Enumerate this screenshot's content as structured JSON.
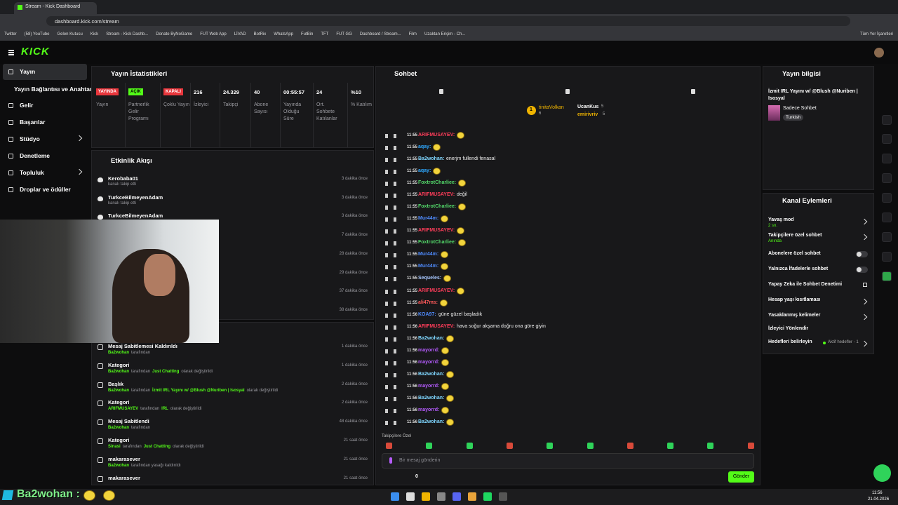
{
  "browser": {
    "tab": "Stream - Kick Dashboard",
    "url": "dashboard.kick.com/stream",
    "bookmarks": [
      "Twitter",
      "(58) YouTube",
      "Gelen Kutusu",
      "Kick",
      "Stream - Kick Dashb...",
      "Donate ByNoGame",
      "FUT Web App",
      "LİVAD",
      "BotRix",
      "WhatsApp",
      "FutBin",
      "TFT",
      "FUT GG",
      "Dashboard / Stream...",
      "Film",
      "Uzaktan Erişim - Ch..."
    ],
    "all_bookmarks": "Tüm Yer İşaretleri"
  },
  "header": {
    "logo": "KICK"
  },
  "nav": [
    "Yayın",
    "Yayın Bağlantısı ve Anahtarı",
    "Gelir",
    "Başarılar",
    "Stüdyo",
    "Denetleme",
    "Topluluk",
    "Droplar ve ödüller"
  ],
  "stats": {
    "title": "Yayın İstatistikleri",
    "items": [
      {
        "value": "YAYINDA",
        "label": "Yayın",
        "badge": "#e8363c"
      },
      {
        "value": "AÇIK",
        "label": "Partnerlik Gelir Programı",
        "badge": "#53fc18"
      },
      {
        "value": "KAPALI",
        "label": "Çoklu Yayın",
        "badge": "#e8363c"
      },
      {
        "value": "216",
        "label": "İzleyici"
      },
      {
        "value": "24.329",
        "label": "Takipçi"
      },
      {
        "value": "40",
        "label": "Abone Sayısı"
      },
      {
        "value": "00:55:57",
        "label": "Yayında Olduğu Süre"
      },
      {
        "value": "24",
        "label": "Ort. Sohbete Katılanlar"
      },
      {
        "value": "%10",
        "label": "% Katılım"
      }
    ]
  },
  "activity": {
    "title": "Etkinlik Akışı",
    "events": [
      {
        "name": "Kerobaba01",
        "action": "kanalı takip etti",
        "time": "3 dakika önce"
      },
      {
        "name": "TurkceBilmeyenAdam",
        "action": "kanalı takip etti",
        "time": "3 dakika önce"
      },
      {
        "name": "TurkceBilmeyenAdam",
        "action": null,
        "time": "3 dakika önce"
      },
      {
        "name": null,
        "action": null,
        "time": "7 dakika önce"
      },
      {
        "name": null,
        "action": null,
        "time": "28 dakika önce"
      },
      {
        "name": null,
        "action": null,
        "time": "29 dakika önce"
      },
      {
        "name": null,
        "action": null,
        "time": "37 dakika önce"
      },
      {
        "name": null,
        "action": null,
        "time": "38 dakika önce"
      }
    ]
  },
  "log": [
    {
      "title": "Mesaj Sabitlemesi Kaldırıldı",
      "parts": [
        "Ba2wohan",
        "tarafından"
      ],
      "time": "1 dakika önce"
    },
    {
      "title": "Kategori",
      "parts": [
        "Ba2wohan",
        "tarafından",
        "Just Chatting",
        "olarak değiştirildi"
      ],
      "time": "1 dakika önce"
    },
    {
      "title": "Başlık",
      "parts": [
        "Ba2wohan",
        "tarafından",
        "İzmit IRL Yayını w/ @Blush @Nuriben | Isosyal",
        "olarak değiştirildi"
      ],
      "time": "2 dakika önce"
    },
    {
      "title": "Kategori",
      "parts": [
        "ARIFMUSAYEV",
        "tarafından",
        "IRL",
        "olarak değiştirildi"
      ],
      "time": "2 dakika önce"
    },
    {
      "title": "Mesaj Sabitlendi",
      "parts": [
        "Ba2wohan",
        "tarafından"
      ],
      "time": "48 dakika önce"
    },
    {
      "title": "Kategori",
      "parts": [
        "Sinasi",
        "tarafından",
        "Just Chatting",
        "olarak değiştirildi"
      ],
      "time": "21 saat önce"
    },
    {
      "title": "makarasever",
      "parts": [
        "Ba2wohan",
        "tarafından yasağı kaldırıldı"
      ],
      "time": "21 saat önce"
    },
    {
      "title": "makarasever",
      "parts": [],
      "time": "21 saat önce"
    }
  ],
  "chat": {
    "title": "Sohbet",
    "leader": {
      "rank": "1",
      "name": "tinitaVolkan",
      "count": "6"
    },
    "top": [
      {
        "name": "UcanKus",
        "count": "5"
      },
      {
        "name": "emirivriv",
        "count": "5"
      }
    ],
    "messages": [
      {
        "time": "11:55",
        "user": "ARIFMUSAYEV:",
        "color": "#ff3d5a",
        "text": null
      },
      {
        "time": "11:55",
        "user": "aqay:",
        "color": "#2ea8ff",
        "text": null
      },
      {
        "time": "11:55",
        "user": "Ba2wohan:",
        "color": "#7fd6ff",
        "text": "enerjm fullendi fenasal"
      },
      {
        "time": "11:55",
        "user": "aqay:",
        "color": "#2ea8ff",
        "text": null
      },
      {
        "time": "11:55",
        "user": "FoxtrotCharliee:",
        "color": "#53d96a",
        "text": null
      },
      {
        "time": "11:55",
        "user": "ARIFMUSAYEV:",
        "color": "#ff3d5a",
        "text": "değil"
      },
      {
        "time": "11:55",
        "user": "FoxtrotCharliee:",
        "color": "#53d96a",
        "text": null
      },
      {
        "time": "11:55",
        "user": "Mur44m:",
        "color": "#4f8cff",
        "text": null
      },
      {
        "time": "11:55",
        "user": "ARIFMUSAYEV:",
        "color": "#ff3d5a",
        "text": null
      },
      {
        "time": "11:55",
        "user": "FoxtrotCharliee:",
        "color": "#53d96a",
        "text": null
      },
      {
        "time": "11:55",
        "user": "Mur44m:",
        "color": "#4f8cff",
        "text": null
      },
      {
        "time": "11:55",
        "user": "Mur44m:",
        "color": "#4f8cff",
        "text": null
      },
      {
        "time": "11:55",
        "user": "Sequeles:",
        "color": "#a8c8ff",
        "text": null
      },
      {
        "time": "11:55",
        "user": "ARIFMUSAYEV:",
        "color": "#ff3d5a",
        "text": null
      },
      {
        "time": "11:55",
        "user": "ali47ms:",
        "color": "#ff5a5a",
        "text": null
      },
      {
        "time": "11:56",
        "user": "KOA97:",
        "color": "#4f8cff",
        "text": "güne güzel başladık"
      },
      {
        "time": "11:56",
        "user": "ARIFMUSAYEV:",
        "color": "#ff3d5a",
        "text": "hava soğur akşama doğru ona göre giyin"
      },
      {
        "time": "11:56",
        "user": "Ba2wohan:",
        "color": "#7fd6ff",
        "text": null
      },
      {
        "time": "11:56",
        "user": "mayorrd:",
        "color": "#b65cff",
        "text": null
      },
      {
        "time": "11:56",
        "user": "mayorrd:",
        "color": "#b65cff",
        "text": null
      },
      {
        "time": "11:56",
        "user": "Ba2wohan:",
        "color": "#7fd6ff",
        "text": null
      },
      {
        "time": "11:56",
        "user": "mayorrd:",
        "color": "#b65cff",
        "text": null
      },
      {
        "time": "11:56",
        "user": "Ba2wohan:",
        "color": "#7fd6ff",
        "text": null
      },
      {
        "time": "11:56",
        "user": "mayorrd:",
        "color": "#b65cff",
        "text": null
      },
      {
        "time": "11:56",
        "user": "Ba2wohan:",
        "color": "#7fd6ff",
        "text": null
      }
    ],
    "mode": "Takipçilere Özel",
    "placeholder": "Bir mesaj gönderin",
    "count": "0",
    "send": "Gönder"
  },
  "info": {
    "title": "Yayın bilgisi",
    "stream_title": "İzmit IRL Yayını w/ @Blush @Nuriben | Isosyal",
    "category": "Sadece Sohbet",
    "language": "Turkish"
  },
  "actions": {
    "title": "Kanal Eylemleri",
    "items": [
      {
        "label": "Yavaş mod",
        "sub": "2 sn.",
        "control": "chevron"
      },
      {
        "label": "Takipçilere özel sohbet",
        "sub": "Anında",
        "control": "chevron"
      },
      {
        "label": "Abonelere özel sohbet",
        "sub": null,
        "control": "toggle"
      },
      {
        "label": "Yalnızca İfadelerle sohbet",
        "sub": null,
        "control": "toggle"
      },
      {
        "label": "Yapay Zeka ile Sohbet Denetimi",
        "sub": null,
        "control": "external"
      },
      {
        "label": "Hesap yaşı kısıtlaması",
        "sub": null,
        "control": "chevron"
      },
      {
        "label": "Yasaklanmış kelimeler",
        "sub": null,
        "control": "chevron"
      },
      {
        "label": "İzleyici Yönlendir",
        "sub": null,
        "control": null
      },
      {
        "label": "Hedefleri belirleyin",
        "sub": "Aktif hedefler - 1",
        "control": "chevron"
      }
    ]
  },
  "overlay": "Ba2wohan :",
  "taskbar": {
    "time": "11:56",
    "date": "21.04.2026"
  }
}
